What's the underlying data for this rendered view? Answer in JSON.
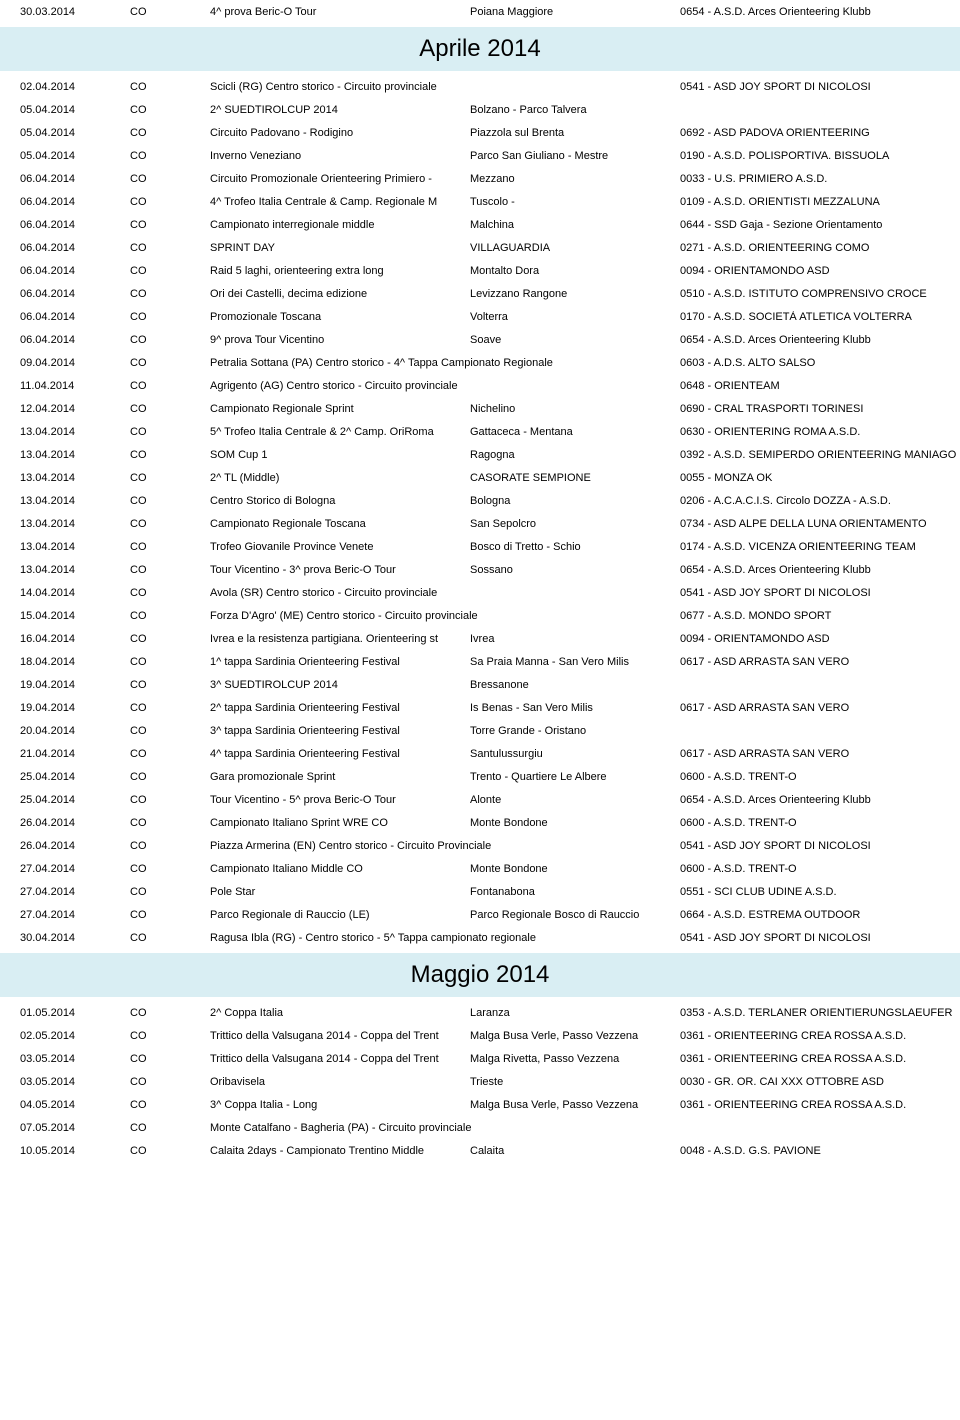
{
  "header_color": "#d9eef3",
  "sections": [
    {
      "kind": "rows",
      "rows": [
        {
          "date": "30.03.2014",
          "type": "CO",
          "event": "4^ prova Beric-O Tour",
          "loc": "Poiana Maggiore",
          "club": "0654 - A.S.D. Arces Orienteering Klubb"
        }
      ]
    },
    {
      "kind": "month",
      "title": "Aprile 2014"
    },
    {
      "kind": "rows",
      "rows": [
        {
          "date": "02.04.2014",
          "type": "CO",
          "event": "Scicli (RG) Centro storico -  Circuito provinciale",
          "loc": "",
          "club": "0541 - ASD JOY SPORT DI NICOLOSI"
        },
        {
          "date": "05.04.2014",
          "type": "CO",
          "event": "2^ SUEDTIROLCUP 2014",
          "loc": "Bolzano - Parco Talvera",
          "club": ""
        },
        {
          "date": "05.04.2014",
          "type": "CO",
          "event": "Circuito Padovano - Rodigino",
          "loc": "Piazzola sul Brenta",
          "club": "0692 - ASD PADOVA ORIENTEERING"
        },
        {
          "date": "05.04.2014",
          "type": "CO",
          "event": "Inverno Veneziano",
          "loc": "Parco San Giuliano - Mestre",
          "club": "0190 - A.S.D. POLISPORTIVA. BISSUOLA"
        },
        {
          "date": "06.04.2014",
          "type": "CO",
          "event": "Circuito Promozionale Orienteering Primiero - ",
          "loc": "Mezzano",
          "club": "0033 - U.S. PRIMIERO A.S.D."
        },
        {
          "date": "06.04.2014",
          "type": "CO",
          "event": "4^ Trofeo Italia Centrale & Camp. Regionale M",
          "loc": "Tuscolo -",
          "club": "0109 - A.S.D. ORIENTISTI MEZZALUNA"
        },
        {
          "date": "06.04.2014",
          "type": "CO",
          "event": "Campionato interregionale middle",
          "loc": "Malchina",
          "club": "0644 - SSD Gaja - Sezione Orientamento"
        },
        {
          "date": "06.04.2014",
          "type": "CO",
          "event": "SPRINT DAY",
          "loc": "VILLAGUARDIA",
          "club": "0271 - A.S.D. ORIENTEERING COMO"
        },
        {
          "date": "06.04.2014",
          "type": "CO",
          "event": "Raid 5 laghi, orienteering extra long",
          "loc": "Montalto Dora",
          "club": "0094 - ORIENTAMONDO ASD"
        },
        {
          "date": "06.04.2014",
          "type": "CO",
          "event": "Ori dei Castelli, decima edizione",
          "loc": "Levizzano Rangone",
          "club": "0510 - A.S.D. ISTITUTO COMPRENSIVO CROCE"
        },
        {
          "date": "06.04.2014",
          "type": "CO",
          "event": "Promozionale Toscana",
          "loc": "Volterra",
          "club": "0170 - A.S.D. SOCIETÀ ATLETICA VOLTERRA"
        },
        {
          "date": "06.04.2014",
          "type": "CO",
          "event": "9^ prova Tour Vicentino",
          "loc": "Soave",
          "club": "0654 - A.S.D. Arces Orienteering Klubb"
        },
        {
          "date": "09.04.2014",
          "type": "CO",
          "event": "Petralia Sottana (PA) Centro storico -  4^ Tappa Campionato Regionale",
          "loc": "",
          "club": "0603 - A.D.S. ALTO SALSO"
        },
        {
          "date": "11.04.2014",
          "type": "CO",
          "event": "Agrigento (AG) Centro storico -  Circuito provinciale",
          "loc": "",
          "club": "0648 - ORIENTEAM"
        },
        {
          "date": "12.04.2014",
          "type": "CO",
          "event": "Campionato Regionale Sprint",
          "loc": "Nichelino",
          "club": "0690 - CRAL TRASPORTI TORINESI"
        },
        {
          "date": "13.04.2014",
          "type": "CO",
          "event": "5^ Trofeo Italia Centrale & 2^ Camp. OriRoma",
          "loc": "Gattaceca - Mentana",
          "club": "0630 - ORIENTERING ROMA A.S.D."
        },
        {
          "date": "13.04.2014",
          "type": "CO",
          "event": "SOM Cup 1",
          "loc": "Ragogna",
          "club": "0392 - A.S.D. SEMIPERDO ORIENTEERING MANIAGO"
        },
        {
          "date": "13.04.2014",
          "type": "CO",
          "event": "2^ TL (Middle)",
          "loc": "CASORATE SEMPIONE",
          "club": "0055 - MONZA OK"
        },
        {
          "date": "13.04.2014",
          "type": "CO",
          "event": "Centro Storico di Bologna",
          "loc": "Bologna",
          "club": "0206 - A.C.A.C.I.S. Circolo DOZZA - A.S.D."
        },
        {
          "date": "13.04.2014",
          "type": "CO",
          "event": "Campionato Regionale Toscana",
          "loc": "San Sepolcro",
          "club": "0734 - ASD ALPE DELLA LUNA ORIENTAMENTO"
        },
        {
          "date": "13.04.2014",
          "type": "CO",
          "event": "Trofeo Giovanile Province Venete",
          "loc": "Bosco di Tretto - Schio",
          "club": "0174 - A.S.D. VICENZA ORIENTEERING TEAM"
        },
        {
          "date": "13.04.2014",
          "type": "CO",
          "event": "Tour Vicentino - 3^ prova Beric-O Tour",
          "loc": "Sossano",
          "club": "0654 - A.S.D. Arces Orienteering Klubb"
        },
        {
          "date": "14.04.2014",
          "type": "CO",
          "event": "Avola (SR) Centro storico -  Circuito provinciale",
          "loc": "",
          "club": "0541 - ASD JOY SPORT DI NICOLOSI"
        },
        {
          "date": "15.04.2014",
          "type": "CO",
          "event": "Forza D'Agro' (ME)  Centro storico -  Circuito provinciale",
          "loc": "",
          "club": "0677 - A.S.D. MONDO SPORT"
        },
        {
          "date": "16.04.2014",
          "type": "CO",
          "event": "Ivrea e la resistenza partigiana. Orienteering st",
          "loc": "Ivrea",
          "club": "0094 - ORIENTAMONDO ASD"
        },
        {
          "date": "18.04.2014",
          "type": "CO",
          "event": "1^ tappa Sardinia Orienteering Festival",
          "loc": "Sa Praia Manna - San Vero Milis",
          "club": "0617 - ASD ARRASTA SAN VERO"
        },
        {
          "date": "19.04.2014",
          "type": "CO",
          "event": "3^ SUEDTIROLCUP 2014",
          "loc": "Bressanone",
          "club": ""
        },
        {
          "date": "19.04.2014",
          "type": "CO",
          "event": "2^ tappa Sardinia Orienteering Festival",
          "loc": "Is Benas - San Vero Milis",
          "club": "0617 - ASD ARRASTA SAN VERO"
        },
        {
          "date": "20.04.2014",
          "type": "CO",
          "event": "3^ tappa Sardinia Orienteering Festival",
          "loc": "Torre Grande - Oristano",
          "club": ""
        },
        {
          "date": "21.04.2014",
          "type": "CO",
          "event": "4^ tappa Sardinia Orienteering Festival",
          "loc": "Santulussurgiu",
          "club": "0617 - ASD ARRASTA SAN VERO"
        },
        {
          "date": "25.04.2014",
          "type": "CO",
          "event": "Gara promozionale Sprint",
          "loc": "Trento - Quartiere Le Albere",
          "club": "0600 - A.S.D. TRENT-O"
        },
        {
          "date": "25.04.2014",
          "type": "CO",
          "event": "Tour Vicentino - 5^ prova Beric-O Tour",
          "loc": "Alonte",
          "club": "0654 - A.S.D. Arces Orienteering Klubb"
        },
        {
          "date": "26.04.2014",
          "type": "CO",
          "event": "Campionato Italiano Sprint WRE CO",
          "loc": "Monte Bondone",
          "club": "0600 - A.S.D. TRENT-O"
        },
        {
          "date": "26.04.2014",
          "type": "CO",
          "event": "Piazza Armerina (EN) Centro storico -  Circuito Provinciale",
          "loc": "",
          "club": "0541 - ASD JOY SPORT DI NICOLOSI"
        },
        {
          "date": "27.04.2014",
          "type": "CO",
          "event": "Campionato Italiano Middle CO",
          "loc": "Monte Bondone",
          "club": "0600 - A.S.D. TRENT-O"
        },
        {
          "date": "27.04.2014",
          "type": "CO",
          "event": "Pole Star",
          "loc": "Fontanabona",
          "club": "0551 - SCI CLUB UDINE A.S.D."
        },
        {
          "date": "27.04.2014",
          "type": "CO",
          "event": "Parco Regionale di Rauccio (LE)",
          "loc": "Parco Regionale Bosco di Rauccio",
          "club": "0664 - A.S.D. ESTREMA OUTDOOR"
        },
        {
          "date": "30.04.2014",
          "type": "CO",
          "event": "Ragusa Ibla (RG) -  Centro storico - 5^ Tappa campionato regionale",
          "loc": "",
          "club": "0541 - ASD JOY SPORT DI NICOLOSI"
        }
      ]
    },
    {
      "kind": "month",
      "title": "Maggio 2014"
    },
    {
      "kind": "rows",
      "rows": [
        {
          "date": "01.05.2014",
          "type": "CO",
          "event": "2^ Coppa Italia",
          "loc": "Laranza",
          "club": "0353 - A.S.D. TERLANER ORIENTIERUNGSLAEUFER"
        },
        {
          "date": "02.05.2014",
          "type": "CO",
          "event": "Trittico della Valsugana 2014 - Coppa del Trent",
          "loc": "Malga Busa Verle, Passo Vezzena",
          "club": "0361 - ORIENTEERING CREA ROSSA A.S.D."
        },
        {
          "date": "03.05.2014",
          "type": "CO",
          "event": "Trittico della Valsugana 2014 - Coppa del Trent",
          "loc": "Malga Rivetta, Passo Vezzena",
          "club": "0361 - ORIENTEERING CREA ROSSA A.S.D."
        },
        {
          "date": "03.05.2014",
          "type": "CO",
          "event": "Oribavisela",
          "loc": "Trieste",
          "club": "0030 - GR. OR. CAI XXX OTTOBRE ASD"
        },
        {
          "date": "04.05.2014",
          "type": "CO",
          "event": "3^ Coppa Italia - Long",
          "loc": "Malga Busa Verle, Passo Vezzena",
          "club": "0361 - ORIENTEERING CREA ROSSA A.S.D."
        },
        {
          "date": "07.05.2014",
          "type": "CO",
          "event": "Monte Catalfano -  Bagheria (PA) - Circuito provinciale",
          "loc": "",
          "club": ""
        },
        {
          "date": "10.05.2014",
          "type": "CO",
          "event": "Calaita 2days - Campionato Trentino Middle",
          "loc": "Calaita",
          "club": "0048 - A.S.D. G.S. PAVIONE"
        }
      ]
    }
  ]
}
